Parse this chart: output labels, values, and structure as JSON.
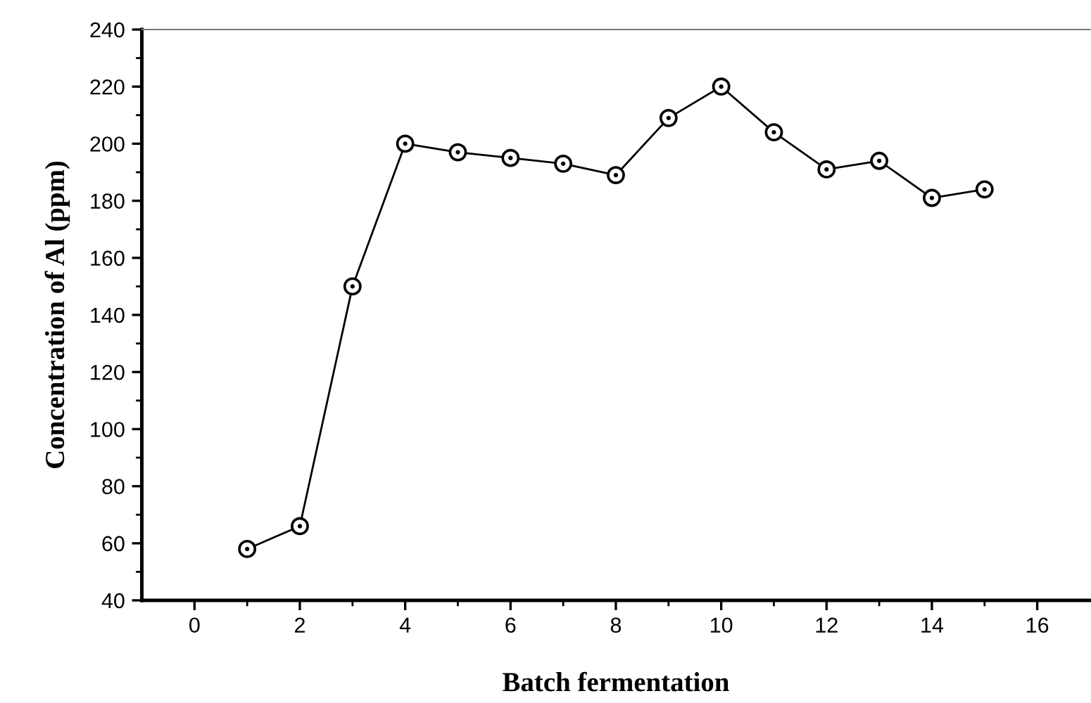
{
  "chart_data": {
    "type": "line",
    "xlabel": "Batch fermentation",
    "ylabel": "Concentration of Al (ppm)",
    "x": [
      1,
      2,
      3,
      4,
      5,
      6,
      7,
      8,
      9,
      10,
      11,
      12,
      13,
      14,
      15
    ],
    "series": [
      {
        "color": "#000000",
        "values": [
          58,
          66,
          150,
          200,
          197,
          195,
          193,
          189,
          209,
          220,
          204,
          191,
          194,
          181,
          184
        ]
      }
    ],
    "xlim": [
      -1,
      17
    ],
    "xticks": [
      0,
      2,
      4,
      6,
      8,
      10,
      12,
      14,
      16
    ],
    "ylim": [
      40,
      240
    ],
    "yticks": [
      40,
      60,
      80,
      100,
      120,
      140,
      160,
      180,
      200,
      220,
      240
    ],
    "grid": false,
    "legend": false,
    "marker": "circle",
    "line_style": "solid"
  }
}
